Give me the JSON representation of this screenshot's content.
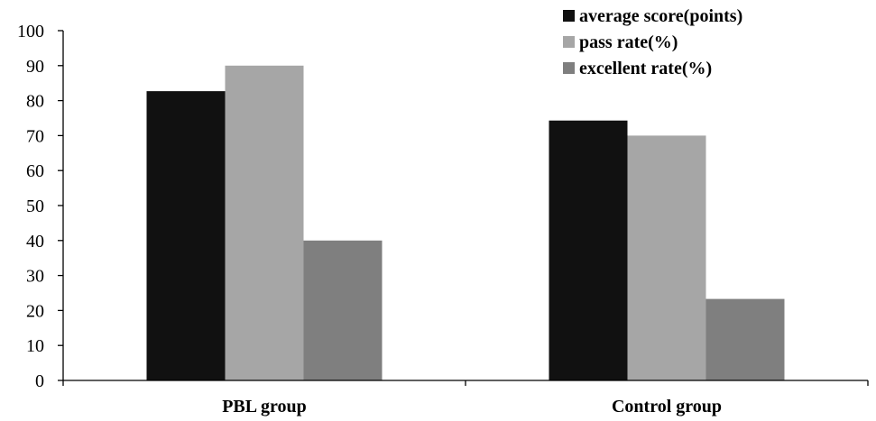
{
  "chart_data": {
    "type": "bar",
    "title": "",
    "xlabel": "",
    "ylabel": "",
    "categories": [
      "PBL group",
      "Control group"
    ],
    "series": [
      {
        "name": "average score(points)",
        "values": [
          82.7,
          74.3
        ],
        "color": "#111111"
      },
      {
        "name": "pass rate(%)",
        "values": [
          90,
          70
        ],
        "color": "#a6a6a6"
      },
      {
        "name": "excellent rate(%)",
        "values": [
          40,
          23.3
        ],
        "color": "#7f7f7f"
      }
    ],
    "ylim": [
      0,
      100
    ],
    "yticks": [
      "0",
      "10",
      "20",
      "30",
      "40",
      "50",
      "60",
      "70",
      "80",
      "90",
      "100"
    ],
    "grid": false,
    "legend_position": "top-right"
  }
}
